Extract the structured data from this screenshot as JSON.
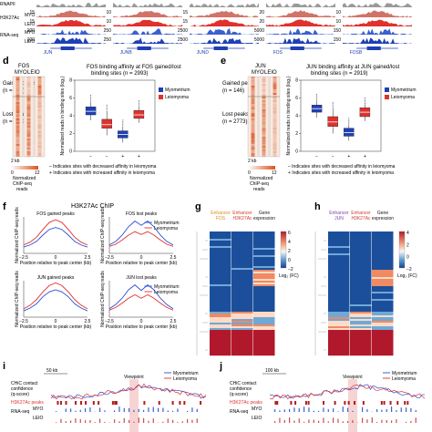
{
  "chart_data": [
    {
      "type": "area",
      "panel": "c",
      "tracks": [
        {
          "label": "H3K27Ac",
          "sublabel_top": "MYO",
          "sublabel_bottom": "LEIO"
        },
        {
          "label": "RNA-seq",
          "sublabel_top": "MYO",
          "sublabel_bottom": "LEIO"
        }
      ],
      "top_track_label": "RNAPII",
      "columns": [
        {
          "gene": "JUN",
          "h3_max": "15",
          "rna_max": "100"
        },
        {
          "gene": "JUNB",
          "h3_max": "10",
          "rna_max": "250"
        },
        {
          "gene": "JUND",
          "h3_max": "15",
          "rna_max": "2500"
        },
        {
          "gene": "FOS",
          "h3_max": "20",
          "rna_max": "5000"
        },
        {
          "gene": "FOSB",
          "h3_max": "10",
          "rna_max": "150"
        }
      ]
    },
    {
      "type": "heatmap",
      "panel": "d",
      "column_labels": [
        "FOS",
        "MYO",
        "LEIO"
      ],
      "groups": [
        {
          "label": "Gained peaks",
          "n": "(n = 420)"
        },
        {
          "label": "Lost peaks",
          "n": "(n = 2573)"
        }
      ],
      "scale_label": "2 kb",
      "colorbar_label": "Normalized ChIP-seq reads",
      "colorbar_ticks": [
        "0",
        "12"
      ]
    },
    {
      "type": "box",
      "panel": "d",
      "title": "FOS binding affinity at FOS gained/lost binding sites (n = 2993)",
      "ylabel": "Normalized reads in binding sites (log₂)",
      "ylim": [
        0,
        8
      ],
      "yticks": [
        0,
        2,
        4,
        6,
        8
      ],
      "xticks": [
        "−",
        "−",
        "+",
        "+"
      ],
      "legend": [
        "Myometrium",
        "Leiomyoma"
      ],
      "boxes": [
        {
          "q1": 4.1,
          "median": 4.5,
          "q3": 5.0,
          "low": 3.5,
          "high": 5.6,
          "color": "#1f3fb4"
        },
        {
          "q1": 2.6,
          "median": 3.0,
          "q3": 3.6,
          "low": 1.8,
          "high": 4.5,
          "color": "#e0312d"
        },
        {
          "q1": 1.5,
          "median": 1.9,
          "q3": 2.3,
          "low": 1.0,
          "high": 2.8,
          "color": "#1f3fb4"
        },
        {
          "q1": 3.7,
          "median": 4.1,
          "q3": 4.6,
          "low": 3.2,
          "high": 5.0,
          "color": "#e0312d"
        }
      ],
      "footnotes": [
        "– Indicates sites with decreased affinity in leiomyoma",
        "+ Indicates sites with increased affinity in leiomyoma"
      ]
    },
    {
      "type": "heatmap",
      "panel": "e",
      "column_labels": [
        "JUN",
        "MYO",
        "LEIO"
      ],
      "groups": [
        {
          "label": "Gained peaks",
          "n": "(n = 146)"
        },
        {
          "label": "Lost peaks",
          "n": "(n = 2773)"
        }
      ],
      "scale_label": "2 kb",
      "colorbar_label": "Normalized ChIP-seq reads",
      "colorbar_ticks": [
        "0",
        "12"
      ]
    },
    {
      "type": "box",
      "panel": "e",
      "title": "JUN binding affinity at JUN gained/lost binding sites (n = 2919)",
      "ylabel": "Normalized reads in binding sites (log₂)",
      "ylim": [
        0,
        8
      ],
      "yticks": [
        0,
        2,
        4,
        6,
        8
      ],
      "xticks": [
        "−",
        "−",
        "+",
        "+"
      ],
      "legend": [
        "Myometrium",
        "Leiomyoma"
      ],
      "boxes": [
        {
          "q1": 4.4,
          "median": 4.8,
          "q3": 5.2,
          "low": 3.8,
          "high": 5.7,
          "color": "#1f3fb4"
        },
        {
          "q1": 2.8,
          "median": 3.3,
          "q3": 3.9,
          "low": 2.0,
          "high": 4.8,
          "color": "#e0312d"
        },
        {
          "q1": 1.7,
          "median": 2.1,
          "q3": 2.6,
          "low": 1.2,
          "high": 3.0,
          "color": "#1f3fb4"
        },
        {
          "q1": 3.9,
          "median": 4.4,
          "q3": 4.9,
          "low": 3.4,
          "high": 5.3,
          "color": "#e0312d"
        }
      ],
      "footnotes": [
        "– Indicates sites with decreased affinity in leiomyoma",
        "+ Indicates sites with increased affinity in leiomyoma"
      ]
    },
    {
      "type": "line",
      "panel": "f",
      "title": "H3K27Ac ChIP",
      "ylabel": "Normalized ChIP-seq reads",
      "xlabel": "Position relative to peak center (kb)",
      "xticks": [
        "−2.5",
        "0",
        "2.5"
      ],
      "legend": [
        "Myometrium",
        "Leiomyoma"
      ],
      "subplots": [
        {
          "title": "FOS gained peaks",
          "series": [
            {
              "color": "#2a4fd6",
              "values": [
                0.9,
                1.2,
                1.7,
                2.6,
                3.4,
                3.7,
                3.4,
                2.6,
                1.7,
                1.2,
                0.9
              ]
            },
            {
              "color": "#e0312d",
              "values": [
                1.2,
                1.6,
                2.3,
                3.4,
                4.4,
                4.8,
                4.4,
                3.4,
                2.3,
                1.6,
                1.2
              ]
            }
          ]
        },
        {
          "title": "FOS lost peaks",
          "series": [
            {
              "color": "#2a4fd6",
              "values": [
                1.2,
                1.7,
                2.6,
                3.8,
                4.6,
                4.0,
                4.6,
                3.8,
                2.6,
                1.7,
                1.2
              ]
            },
            {
              "color": "#e0312d",
              "values": [
                1.0,
                1.3,
                1.9,
                2.6,
                3.1,
                2.7,
                3.1,
                2.6,
                1.9,
                1.3,
                1.0
              ]
            }
          ]
        },
        {
          "title": "JUN gained peaks",
          "series": [
            {
              "color": "#2a4fd6",
              "values": [
                0.9,
                1.3,
                1.9,
                2.9,
                3.6,
                3.9,
                3.6,
                2.9,
                1.9,
                1.3,
                0.9
              ]
            },
            {
              "color": "#e0312d",
              "values": [
                1.2,
                1.7,
                2.5,
                3.6,
                4.5,
                4.9,
                4.5,
                3.6,
                2.5,
                1.7,
                1.2
              ]
            }
          ]
        },
        {
          "title": "JUN lost peaks",
          "series": [
            {
              "color": "#2a4fd6",
              "values": [
                1.2,
                1.8,
                2.7,
                3.9,
                4.6,
                3.8,
                4.6,
                3.9,
                2.7,
                1.8,
                1.2
              ]
            },
            {
              "color": "#e0312d",
              "values": [
                1.0,
                1.4,
                2.0,
                2.7,
                3.2,
                2.7,
                3.2,
                2.7,
                2.0,
                1.4,
                1.0
              ]
            }
          ]
        }
      ]
    },
    {
      "type": "heatmap",
      "panel": "g",
      "column_labels": [
        "Enhancer FOS",
        "Enhancer H3K27Ac",
        "Gene expression"
      ],
      "column_label_colors": [
        "#e08a1e",
        "#d23a2a",
        "#111111"
      ],
      "colorbar_ticks": [
        "6",
        "4",
        "2",
        "0",
        "−2"
      ],
      "colorbar_label": "Log₂ (FC)"
    },
    {
      "type": "heatmap",
      "panel": "h",
      "column_labels": [
        "Enhancer JUN",
        "Enhancer H3K27Ac",
        "Gene expression"
      ],
      "column_label_colors": [
        "#7a3fb0",
        "#d23a2a",
        "#111111"
      ],
      "colorbar_ticks": [
        "4",
        "2",
        "0",
        "−2"
      ],
      "colorbar_label": "Log₂ (FC)"
    },
    {
      "type": "line",
      "panel": "i",
      "ylabel": "CHiC contact confidence (q-score)",
      "scale_label": "50 kb",
      "legend": [
        "Myometrium",
        "Leiomyoma"
      ],
      "annotation": "Viewpoint",
      "tracks": [
        "H3K27Ac peaks",
        "RNA-seq"
      ],
      "track_sublabels": [
        "MYO",
        "LEIO"
      ]
    },
    {
      "type": "line",
      "panel": "j",
      "ylabel": "CHiC contact confidence (q-score)",
      "scale_label": "100 kb",
      "legend": [
        "Myometrium",
        "Leiomyoma"
      ],
      "annotation": "Viewpoint",
      "tracks": [
        "H3K27Ac peaks",
        "RNA-seq"
      ],
      "track_sublabels": [
        "MYO",
        "LEIO"
      ]
    }
  ],
  "panels": {
    "d": "d",
    "e": "e",
    "f": "f",
    "g": "g",
    "h": "h",
    "i": "i",
    "j": "j"
  },
  "colors": {
    "blue": "#1f3fb4",
    "red": "#e0312d",
    "grey": "#9a9a9a"
  }
}
